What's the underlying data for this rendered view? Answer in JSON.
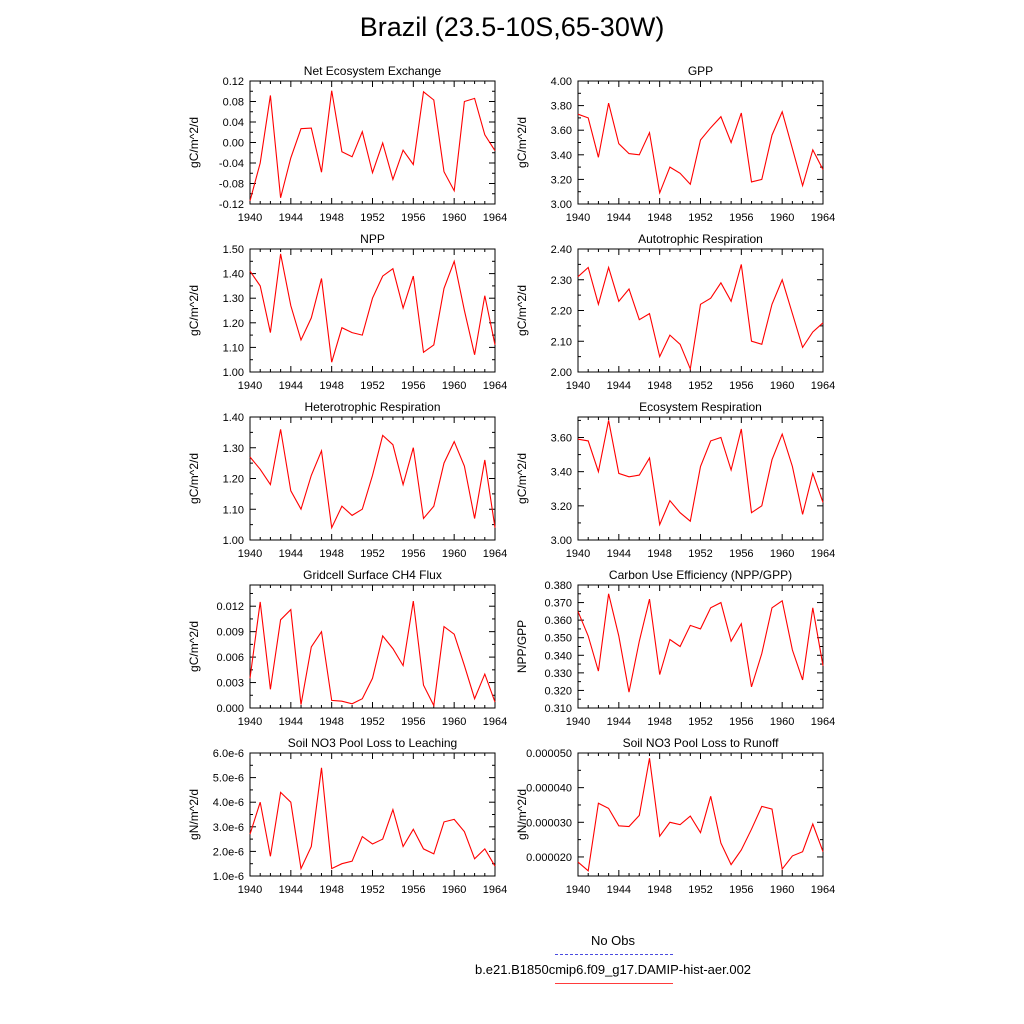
{
  "figure": {
    "title": "Brazil (23.5-10S,65-30W)",
    "series_color": "#ff0000",
    "legend": [
      {
        "label": "No Obs",
        "color": "#4a4ae0",
        "style": "dashed"
      },
      {
        "label": "b.e21.B1850cmip6.f09_g17.DAMIP-hist-aer.002",
        "color": "#ff3b3b",
        "style": "solid"
      }
    ]
  },
  "chart_data": [
    {
      "type": "line",
      "title": "Net Ecosystem Exchange",
      "ylabel": "gC/m^2/d",
      "x": [
        1940,
        1941,
        1942,
        1943,
        1944,
        1945,
        1946,
        1947,
        1948,
        1949,
        1950,
        1951,
        1952,
        1953,
        1954,
        1955,
        1956,
        1957,
        1958,
        1959,
        1960,
        1961,
        1962,
        1963,
        1964
      ],
      "values": [
        -0.114,
        -0.04,
        0.092,
        -0.108,
        -0.03,
        0.027,
        0.028,
        -0.058,
        0.101,
        -0.018,
        -0.028,
        0.021,
        -0.059,
        -0.001,
        -0.072,
        -0.015,
        -0.043,
        0.099,
        0.083,
        -0.057,
        -0.094,
        0.08,
        0.086,
        0.015,
        -0.016
      ],
      "xlim": [
        1940,
        1964
      ],
      "ylim": [
        -0.12,
        0.12
      ],
      "xticks": [
        1940,
        1944,
        1948,
        1952,
        1956,
        1960,
        1964
      ],
      "yticks": [
        -0.12,
        -0.08,
        -0.04,
        0.0,
        0.04,
        0.08,
        0.12
      ],
      "ytick_labels": [
        "-0.12",
        "-0.08",
        "-0.04",
        "0.00",
        "0.04",
        "0.08",
        "0.12"
      ]
    },
    {
      "type": "line",
      "title": "GPP",
      "ylabel": "gC/m^2/d",
      "x": [
        1940,
        1941,
        1942,
        1943,
        1944,
        1945,
        1946,
        1947,
        1948,
        1949,
        1950,
        1951,
        1952,
        1953,
        1954,
        1955,
        1956,
        1957,
        1958,
        1959,
        1960,
        1961,
        1962,
        1963,
        1964
      ],
      "values": [
        3.73,
        3.7,
        3.38,
        3.82,
        3.49,
        3.41,
        3.4,
        3.58,
        3.09,
        3.3,
        3.25,
        3.16,
        3.52,
        3.62,
        3.71,
        3.5,
        3.74,
        3.18,
        3.2,
        3.56,
        3.75,
        3.45,
        3.15,
        3.44,
        3.28
      ],
      "xlim": [
        1940,
        1964
      ],
      "ylim": [
        3.0,
        4.0
      ],
      "xticks": [
        1940,
        1944,
        1948,
        1952,
        1956,
        1960,
        1964
      ],
      "yticks": [
        3.0,
        3.2,
        3.4,
        3.6,
        3.8,
        4.0
      ],
      "ytick_labels": [
        "3.00",
        "3.20",
        "3.40",
        "3.60",
        "3.80",
        "4.00"
      ]
    },
    {
      "type": "line",
      "title": "NPP",
      "ylabel": "gC/m^2/d",
      "x": [
        1940,
        1941,
        1942,
        1943,
        1944,
        1945,
        1946,
        1947,
        1948,
        1949,
        1950,
        1951,
        1952,
        1953,
        1954,
        1955,
        1956,
        1957,
        1958,
        1959,
        1960,
        1961,
        1962,
        1963,
        1964
      ],
      "values": [
        1.41,
        1.35,
        1.16,
        1.48,
        1.27,
        1.13,
        1.22,
        1.38,
        1.04,
        1.18,
        1.16,
        1.15,
        1.3,
        1.39,
        1.42,
        1.26,
        1.39,
        1.08,
        1.11,
        1.34,
        1.45,
        1.25,
        1.07,
        1.31,
        1.11
      ],
      "xlim": [
        1940,
        1964
      ],
      "ylim": [
        1.0,
        1.5
      ],
      "xticks": [
        1940,
        1944,
        1948,
        1952,
        1956,
        1960,
        1964
      ],
      "yticks": [
        1.0,
        1.1,
        1.2,
        1.3,
        1.4,
        1.5
      ],
      "ytick_labels": [
        "1.00",
        "1.10",
        "1.20",
        "1.30",
        "1.40",
        "1.50"
      ]
    },
    {
      "type": "line",
      "title": "Autotrophic Respiration",
      "ylabel": "gC/m^2/d",
      "x": [
        1940,
        1941,
        1942,
        1943,
        1944,
        1945,
        1946,
        1947,
        1948,
        1949,
        1950,
        1951,
        1952,
        1953,
        1954,
        1955,
        1956,
        1957,
        1958,
        1959,
        1960,
        1961,
        1962,
        1963,
        1964
      ],
      "values": [
        2.31,
        2.34,
        2.22,
        2.34,
        2.23,
        2.27,
        2.17,
        2.19,
        2.05,
        2.12,
        2.09,
        2.01,
        2.22,
        2.24,
        2.29,
        2.23,
        2.35,
        2.1,
        2.09,
        2.22,
        2.3,
        2.19,
        2.08,
        2.13,
        2.16
      ],
      "xlim": [
        1940,
        1964
      ],
      "ylim": [
        2.0,
        2.4
      ],
      "xticks": [
        1940,
        1944,
        1948,
        1952,
        1956,
        1960,
        1964
      ],
      "yticks": [
        2.0,
        2.1,
        2.2,
        2.3,
        2.4
      ],
      "ytick_labels": [
        "2.00",
        "2.10",
        "2.20",
        "2.30",
        "2.40"
      ]
    },
    {
      "type": "line",
      "title": "Heterotrophic Respiration",
      "ylabel": "gC/m^2/d",
      "x": [
        1940,
        1941,
        1942,
        1943,
        1944,
        1945,
        1946,
        1947,
        1948,
        1949,
        1950,
        1951,
        1952,
        1953,
        1954,
        1955,
        1956,
        1957,
        1958,
        1959,
        1960,
        1961,
        1962,
        1963,
        1964
      ],
      "values": [
        1.27,
        1.23,
        1.18,
        1.36,
        1.16,
        1.1,
        1.21,
        1.29,
        1.04,
        1.11,
        1.08,
        1.1,
        1.21,
        1.34,
        1.31,
        1.18,
        1.3,
        1.07,
        1.11,
        1.25,
        1.32,
        1.24,
        1.07,
        1.26,
        1.04
      ],
      "xlim": [
        1940,
        1964
      ],
      "ylim": [
        1.0,
        1.4
      ],
      "xticks": [
        1940,
        1944,
        1948,
        1952,
        1956,
        1960,
        1964
      ],
      "yticks": [
        1.0,
        1.1,
        1.2,
        1.3,
        1.4
      ],
      "ytick_labels": [
        "1.00",
        "1.10",
        "1.20",
        "1.30",
        "1.40"
      ]
    },
    {
      "type": "line",
      "title": "Ecosystem Respiration",
      "ylabel": "gC/m^2/d",
      "x": [
        1940,
        1941,
        1942,
        1943,
        1944,
        1945,
        1946,
        1947,
        1948,
        1949,
        1950,
        1951,
        1952,
        1953,
        1954,
        1955,
        1956,
        1957,
        1958,
        1959,
        1960,
        1961,
        1962,
        1963,
        1964
      ],
      "values": [
        3.59,
        3.58,
        3.4,
        3.7,
        3.39,
        3.37,
        3.38,
        3.48,
        3.09,
        3.23,
        3.16,
        3.11,
        3.43,
        3.58,
        3.6,
        3.41,
        3.65,
        3.16,
        3.2,
        3.47,
        3.62,
        3.43,
        3.15,
        3.39,
        3.22
      ],
      "xlim": [
        1940,
        1964
      ],
      "ylim": [
        3.0,
        3.72
      ],
      "xticks": [
        1940,
        1944,
        1948,
        1952,
        1956,
        1960,
        1964
      ],
      "yticks": [
        3.0,
        3.2,
        3.4,
        3.6
      ],
      "ytick_labels": [
        "3.00",
        "3.20",
        "3.40",
        "3.60"
      ]
    },
    {
      "type": "line",
      "title": "Gridcell Surface CH4 Flux",
      "ylabel": "gC/m^2/d",
      "x": [
        1940,
        1941,
        1942,
        1943,
        1944,
        1945,
        1946,
        1947,
        1948,
        1949,
        1950,
        1951,
        1952,
        1953,
        1954,
        1955,
        1956,
        1957,
        1958,
        1959,
        1960,
        1961,
        1962,
        1963,
        1964
      ],
      "values": [
        0.0035,
        0.0125,
        0.0022,
        0.0104,
        0.0116,
        0.0004,
        0.0072,
        0.009,
        0.0009,
        0.0008,
        0.0005,
        0.0011,
        0.0035,
        0.0085,
        0.007,
        0.005,
        0.0126,
        0.0027,
        0.0003,
        0.0096,
        0.0087,
        0.005,
        0.0011,
        0.004,
        0.0007
      ],
      "xlim": [
        1940,
        1964
      ],
      "ylim": [
        0.0,
        0.0145
      ],
      "xticks": [
        1940,
        1944,
        1948,
        1952,
        1956,
        1960,
        1964
      ],
      "yticks": [
        0.0,
        0.003,
        0.006,
        0.009,
        0.012
      ],
      "ytick_labels": [
        "0.000",
        "0.003",
        "0.006",
        "0.009",
        "0.012"
      ]
    },
    {
      "type": "line",
      "title": "Carbon Use Efficiency (NPP/GPP)",
      "ylabel": "NPP/GPP",
      "x": [
        1940,
        1941,
        1942,
        1943,
        1944,
        1945,
        1946,
        1947,
        1948,
        1949,
        1950,
        1951,
        1952,
        1953,
        1954,
        1955,
        1956,
        1957,
        1958,
        1959,
        1960,
        1961,
        1962,
        1963,
        1964
      ],
      "values": [
        0.365,
        0.351,
        0.331,
        0.375,
        0.351,
        0.319,
        0.348,
        0.372,
        0.329,
        0.349,
        0.345,
        0.357,
        0.355,
        0.367,
        0.37,
        0.348,
        0.358,
        0.322,
        0.341,
        0.367,
        0.371,
        0.343,
        0.326,
        0.367,
        0.334
      ],
      "xlim": [
        1940,
        1964
      ],
      "ylim": [
        0.31,
        0.38
      ],
      "xticks": [
        1940,
        1944,
        1948,
        1952,
        1956,
        1960,
        1964
      ],
      "yticks": [
        0.31,
        0.32,
        0.33,
        0.34,
        0.35,
        0.36,
        0.37,
        0.38
      ],
      "ytick_labels": [
        "0.310",
        "0.320",
        "0.330",
        "0.340",
        "0.350",
        "0.360",
        "0.370",
        "0.380"
      ]
    },
    {
      "type": "line",
      "title": "Soil NO3 Pool Loss to Leaching",
      "ylabel": "gN/m^2/d",
      "x": [
        1940,
        1941,
        1942,
        1943,
        1944,
        1945,
        1946,
        1947,
        1948,
        1949,
        1950,
        1951,
        1952,
        1953,
        1954,
        1955,
        1956,
        1957,
        1958,
        1959,
        1960,
        1961,
        1962,
        1963,
        1964
      ],
      "values": [
        2.7e-06,
        4e-06,
        1.8e-06,
        4.4e-06,
        4e-06,
        1.3e-06,
        2.2e-06,
        5.4e-06,
        1.3e-06,
        1.5e-06,
        1.6e-06,
        2.6e-06,
        2.3e-06,
        2.5e-06,
        3.7e-06,
        2.2e-06,
        2.9e-06,
        2.1e-06,
        1.9e-06,
        3.2e-06,
        3.3e-06,
        2.8e-06,
        1.7e-06,
        2.1e-06,
        1.4e-06
      ],
      "xlim": [
        1940,
        1964
      ],
      "ylim": [
        1e-06,
        6e-06
      ],
      "xticks": [
        1940,
        1944,
        1948,
        1952,
        1956,
        1960,
        1964
      ],
      "yticks": [
        1e-06,
        2e-06,
        3e-06,
        4e-06,
        5e-06,
        6e-06
      ],
      "ytick_labels": [
        "1.0e-6",
        "2.0e-6",
        "3.0e-6",
        "4.0e-6",
        "5.0e-6",
        "6.0e-6"
      ]
    },
    {
      "type": "line",
      "title": "Soil NO3 Pool Loss to Runoff",
      "ylabel": "gN/m^2/d",
      "x": [
        1940,
        1941,
        1942,
        1943,
        1944,
        1945,
        1946,
        1947,
        1948,
        1949,
        1950,
        1951,
        1952,
        1953,
        1954,
        1955,
        1956,
        1957,
        1958,
        1959,
        1960,
        1961,
        1962,
        1963,
        1964
      ],
      "values": [
        1.85e-05,
        1.6e-05,
        3.55e-05,
        3.4e-05,
        2.9e-05,
        2.88e-05,
        3.2e-05,
        4.85e-05,
        2.6e-05,
        3e-05,
        2.93e-05,
        3.18e-05,
        2.7e-05,
        3.75e-05,
        2.4e-05,
        1.78e-05,
        2.2e-05,
        2.8e-05,
        3.46e-05,
        3.38e-05,
        1.65e-05,
        2.03e-05,
        2.15e-05,
        2.95e-05,
        2.15e-05
      ],
      "xlim": [
        1940,
        1964
      ],
      "ylim": [
        1.45e-05,
        5e-05
      ],
      "xticks": [
        1940,
        1944,
        1948,
        1952,
        1956,
        1960,
        1964
      ],
      "yticks": [
        2e-05,
        3e-05,
        4e-05,
        5e-05
      ],
      "ytick_labels": [
        "0.000020",
        "0.000030",
        "0.000040",
        "0.000050"
      ]
    }
  ]
}
